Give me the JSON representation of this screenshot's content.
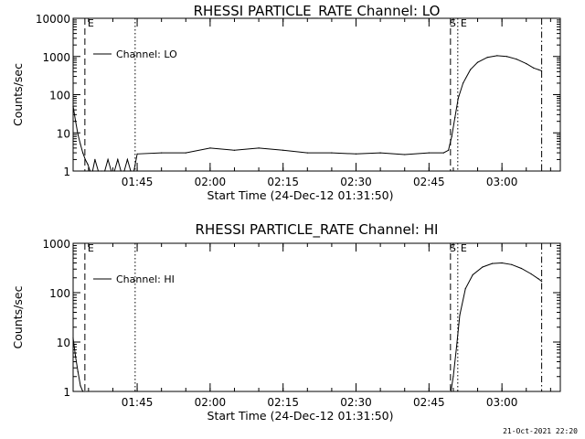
{
  "chart_data": [
    {
      "type": "line",
      "title": "RHESSI PARTICLE_RATE Channel: LO",
      "xlabel": "Start Time (24-Dec-12 01:31:50)",
      "ylabel": "Counts/sec",
      "y_scale": "log",
      "ylim": [
        1,
        10000
      ],
      "y_ticks": [
        "1",
        "10",
        "100",
        "1000",
        "10000"
      ],
      "xlim": [
        "01:31:50",
        "03:12:00"
      ],
      "x_ticks": [
        "01:45",
        "02:00",
        "02:15",
        "02:30",
        "02:45",
        "03:00"
      ],
      "legend": "Channel: LO",
      "legend_position": "top-left",
      "markers": [
        {
          "time": "01:34:15",
          "style": "dashed",
          "label": "E"
        },
        {
          "time": "01:44:35",
          "style": "dotted",
          "label": ""
        },
        {
          "time": "02:49:25",
          "style": "dashed",
          "label": "S"
        },
        {
          "time": "02:50:55",
          "style": "dotted",
          "label": "E"
        },
        {
          "time": "03:08:10",
          "style": "dash-dot",
          "label": ""
        }
      ],
      "series": [
        {
          "name": "Channel: LO",
          "x": [
            "01:31:50",
            "01:32:20",
            "01:32:50",
            "01:33:20",
            "01:33:50",
            "01:34:20",
            "01:34:50",
            "01:35:20",
            "01:35:50",
            "01:36:20",
            "01:37:00",
            "01:37:40",
            "01:38:20",
            "01:39:00",
            "01:39:40",
            "01:40:20",
            "01:41:00",
            "01:41:40",
            "01:42:20",
            "01:43:00",
            "01:43:40",
            "01:44:20",
            "01:45:00",
            "01:50:00",
            "01:55:00",
            "02:00:00",
            "02:05:00",
            "02:10:00",
            "02:15:00",
            "02:20:00",
            "02:25:00",
            "02:30:00",
            "02:35:00",
            "02:40:00",
            "02:45:00",
            "02:48:00",
            "02:49:00",
            "02:49:40",
            "02:50:20",
            "02:51:00",
            "02:52:00",
            "02:53:30",
            "02:55:00",
            "02:57:00",
            "02:59:00",
            "03:01:00",
            "03:03:00",
            "03:05:00",
            "03:06:30",
            "03:07:30",
            "03:08:10"
          ],
          "y": [
            50,
            20,
            9,
            5,
            3,
            2,
            1.5,
            1,
            1,
            2,
            1,
            1,
            1,
            2,
            1,
            1,
            2,
            1,
            1,
            2,
            1,
            1,
            2.8,
            3,
            3,
            4,
            3.5,
            4,
            3.5,
            3,
            3,
            2.8,
            3,
            2.7,
            3,
            3,
            3.5,
            8,
            25,
            80,
            200,
            450,
            700,
            950,
            1050,
            1000,
            850,
            650,
            500,
            450,
            420
          ]
        }
      ]
    },
    {
      "type": "line",
      "title": "RHESSI PARTICLE_RATE Channel: HI",
      "xlabel": "Start Time (24-Dec-12 01:31:50)",
      "ylabel": "Counts/sec",
      "y_scale": "log",
      "ylim": [
        1,
        1000
      ],
      "y_ticks": [
        "1",
        "10",
        "100",
        "1000"
      ],
      "xlim": [
        "01:31:50",
        "03:12:00"
      ],
      "x_ticks": [
        "01:45",
        "02:00",
        "02:15",
        "02:30",
        "02:45",
        "03:00"
      ],
      "legend": "Channel: HI",
      "legend_position": "top-left",
      "markers": [
        {
          "time": "01:34:15",
          "style": "dashed",
          "label": "E"
        },
        {
          "time": "01:44:35",
          "style": "dotted",
          "label": ""
        },
        {
          "time": "02:49:25",
          "style": "dashed",
          "label": "S"
        },
        {
          "time": "02:50:55",
          "style": "dotted",
          "label": "E"
        },
        {
          "time": "03:08:10",
          "style": "dash-dot",
          "label": ""
        }
      ],
      "series": [
        {
          "name": "Channel: HI",
          "x": [
            "01:31:50",
            "01:32:20",
            "01:32:50",
            "01:33:20",
            "01:33:50",
            "01:34:10",
            "02:49:30",
            "02:50:00",
            "02:50:40",
            "02:51:20",
            "02:52:30",
            "02:54:00",
            "02:56:00",
            "02:58:00",
            "03:00:00",
            "03:02:00",
            "03:04:00",
            "03:06:00",
            "03:07:30",
            "03:08:10"
          ],
          "y": [
            12,
            5,
            2.5,
            1.3,
            1,
            1,
            1,
            2,
            8,
            35,
            120,
            230,
            330,
            390,
            400,
            370,
            310,
            240,
            190,
            170
          ]
        }
      ]
    }
  ],
  "footer": {
    "timestamp": "21-Oct-2021 22:20"
  },
  "style": {
    "axis_color": "#000000",
    "line_color": "#000000",
    "background": "#ffffff"
  }
}
